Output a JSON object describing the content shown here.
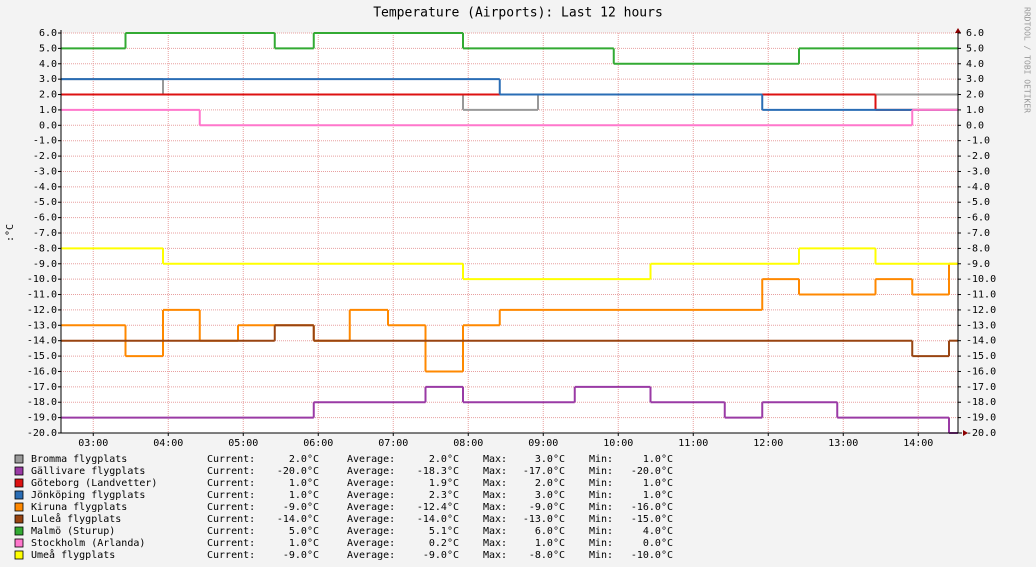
{
  "chart_data": {
    "type": "step-line",
    "title": "Temperature (Airports): Last 12 hours",
    "y_label": ":°C",
    "watermark": "RRDTOOL / TOBI OETIKER",
    "xlim": [
      2.57,
      14.53
    ],
    "xticks": [
      {
        "value": 3,
        "label": "03:00"
      },
      {
        "value": 4,
        "label": "04:00"
      },
      {
        "value": 5,
        "label": "05:00"
      },
      {
        "value": 6,
        "label": "06:00"
      },
      {
        "value": 7,
        "label": "07:00"
      },
      {
        "value": 8,
        "label": "08:00"
      },
      {
        "value": 9,
        "label": "09:00"
      },
      {
        "value": 10,
        "label": "10:00"
      },
      {
        "value": 11,
        "label": "11:00"
      },
      {
        "value": 12,
        "label": "12:00"
      },
      {
        "value": 13,
        "label": "13:00"
      },
      {
        "value": 14,
        "label": "14:00"
      }
    ],
    "ylim": [
      -20,
      6
    ],
    "yticks": [
      {
        "value": 6,
        "label": "6.0"
      },
      {
        "value": 5,
        "label": "5.0"
      },
      {
        "value": 4,
        "label": "4.0"
      },
      {
        "value": 3,
        "label": "3.0"
      },
      {
        "value": 2,
        "label": "2.0"
      },
      {
        "value": 1,
        "label": "1.0"
      },
      {
        "value": 0,
        "label": "0.0"
      },
      {
        "value": -1,
        "label": "-1.0"
      },
      {
        "value": -2,
        "label": "-2.0"
      },
      {
        "value": -3,
        "label": "-3.0"
      },
      {
        "value": -4,
        "label": "-4.0"
      },
      {
        "value": -5,
        "label": "-5.0"
      },
      {
        "value": -6,
        "label": "-6.0"
      },
      {
        "value": -7,
        "label": "-7.0"
      },
      {
        "value": -8,
        "label": "-8.0"
      },
      {
        "value": -9,
        "label": "-9.0"
      },
      {
        "value": -10,
        "label": "-10.0"
      },
      {
        "value": -11,
        "label": "-11.0"
      },
      {
        "value": -12,
        "label": "-12.0"
      },
      {
        "value": -13,
        "label": "-13.0"
      },
      {
        "value": -14,
        "label": "-14.0"
      },
      {
        "value": -15,
        "label": "-15.0"
      },
      {
        "value": -16,
        "label": "-16.0"
      },
      {
        "value": -17,
        "label": "-17.0"
      },
      {
        "value": -18,
        "label": "-18.0"
      },
      {
        "value": -19,
        "label": "-19.0"
      },
      {
        "value": -20,
        "label": "-20.0"
      }
    ],
    "grid": true,
    "legend_labels": [
      "Current:",
      "Average:",
      "Max:",
      "Min:"
    ],
    "series": [
      {
        "name": "Bromma flygplats",
        "color": "#999999",
        "x": [
          2.57,
          3.93,
          7.93,
          8.93
        ],
        "values": [
          3,
          2,
          1,
          2
        ],
        "stats": [
          "2.0°C",
          "2.0°C",
          "3.0°C",
          "1.0°C"
        ]
      },
      {
        "name": "Gällivare flygplats",
        "color": "#9a3aa5",
        "x": [
          2.57,
          5.94,
          7.43,
          7.93,
          9.42,
          10.43,
          11.42,
          11.92,
          12.92,
          14.41
        ],
        "values": [
          -19,
          -18,
          -17,
          -18,
          -17,
          -18,
          -19,
          -18,
          -19,
          -20
        ],
        "stats": [
          "-20.0°C",
          "-18.3°C",
          "-17.0°C",
          "-20.0°C"
        ]
      },
      {
        "name": "Göteborg (Landvetter)",
        "color": "#dd1111",
        "x": [
          2.57,
          13.43
        ],
        "values": [
          2,
          1
        ],
        "stats": [
          "1.0°C",
          "1.9°C",
          "2.0°C",
          "1.0°C"
        ]
      },
      {
        "name": "Jönköping flygplats",
        "color": "#2a6db5",
        "x": [
          2.57,
          8.42,
          11.92
        ],
        "values": [
          3,
          2,
          1
        ],
        "stats": [
          "1.0°C",
          "2.3°C",
          "3.0°C",
          "1.0°C"
        ]
      },
      {
        "name": "Kiruna flygplats",
        "color": "#ff8800",
        "x": [
          2.57,
          3.43,
          3.93,
          4.42,
          4.93,
          5.94,
          6.42,
          6.93,
          7.43,
          7.93,
          8.42,
          11.92,
          12.41,
          13.43,
          13.92,
          14.41
        ],
        "values": [
          -13,
          -15,
          -12,
          -14,
          -13,
          -14,
          -12,
          -13,
          -16,
          -13,
          -12,
          -10,
          -11,
          -10,
          -11,
          -9
        ],
        "stats": [
          "-9.0°C",
          "-12.4°C",
          "-9.0°C",
          "-16.0°C"
        ]
      },
      {
        "name": "Luleå flygplats",
        "color": "#994411",
        "x": [
          2.57,
          5.42,
          5.94,
          13.92,
          14.41
        ],
        "values": [
          -14,
          -13,
          -14,
          -15,
          -14
        ],
        "stats": [
          "-14.0°C",
          "-14.0°C",
          "-13.0°C",
          "-15.0°C"
        ]
      },
      {
        "name": "Malmö (Sturup)",
        "color": "#33aa33",
        "x": [
          2.57,
          3.43,
          5.42,
          5.94,
          7.93,
          9.94,
          12.41
        ],
        "values": [
          5,
          6,
          5,
          6,
          5,
          4,
          5
        ],
        "stats": [
          "5.0°C",
          "5.1°C",
          "6.0°C",
          "4.0°C"
        ]
      },
      {
        "name": "Stockholm (Arlanda)",
        "color": "#ff77cc",
        "x": [
          2.57,
          4.42,
          13.92
        ],
        "values": [
          1,
          0,
          1
        ],
        "stats": [
          "1.0°C",
          "0.2°C",
          "1.0°C",
          "0.0°C"
        ]
      },
      {
        "name": "Umeå flygplats",
        "color": "#ffff00",
        "x": [
          2.57,
          3.93,
          7.93,
          10.43,
          12.41,
          13.43
        ],
        "values": [
          -8,
          -9,
          -10,
          -9,
          -8,
          -9
        ],
        "stats": [
          "-9.0°C",
          "-9.0°C",
          "-8.0°C",
          "-10.0°C"
        ]
      }
    ]
  }
}
